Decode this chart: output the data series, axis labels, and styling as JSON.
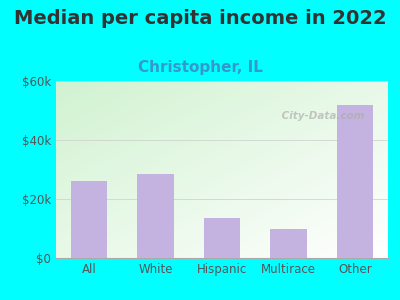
{
  "title": "Median per capita income in 2022",
  "subtitle": "Christopher, IL",
  "categories": [
    "All",
    "White",
    "Hispanic",
    "Multirace",
    "Other"
  ],
  "values": [
    26000,
    28500,
    13500,
    10000,
    52000
  ],
  "bar_color": "#c4b3e0",
  "title_fontsize": 14,
  "subtitle_fontsize": 11,
  "subtitle_color": "#3399cc",
  "title_color": "#333333",
  "background_outer": "#00ffff",
  "ylim": [
    0,
    60000
  ],
  "yticks": [
    0,
    20000,
    40000,
    60000
  ],
  "ytick_labels": [
    "$0",
    "$20k",
    "$40k",
    "$60k"
  ],
  "watermark": " City-Data.com"
}
